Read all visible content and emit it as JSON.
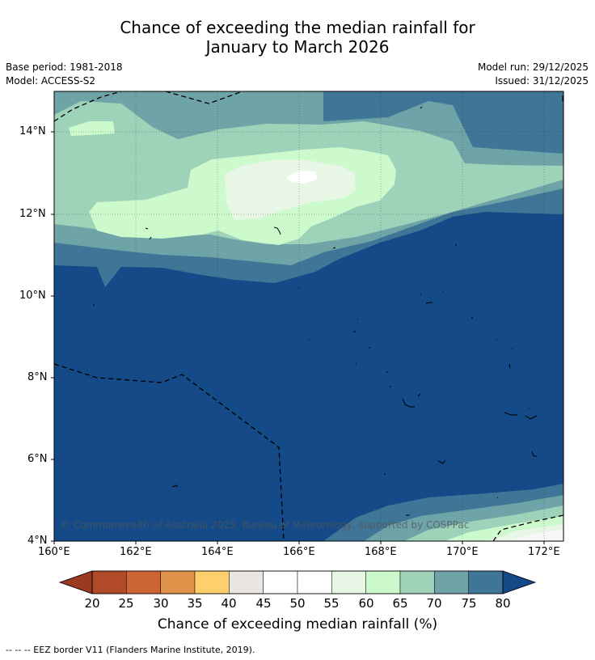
{
  "title": {
    "line1": "Chance of exceeding the median rainfall for",
    "line2": "January to March 2026"
  },
  "meta": {
    "base_period": "Base period: 1981-2018",
    "model": "Model: ACCESS-S2",
    "model_run": "Model run: 29/12/2025",
    "issued": "Issued: 31/12/2025"
  },
  "axes": {
    "x_ticks": [
      "160°E",
      "162°E",
      "164°E",
      "166°E",
      "168°E",
      "170°E",
      "172°E"
    ],
    "y_ticks": [
      "14°N",
      "12°N",
      "10°N",
      "8°N",
      "6°N",
      "4°N"
    ]
  },
  "copyright": "© Commonwealth of Australia 2025, Bureau of Meteorology, supported by COSPPac",
  "colorbar": {
    "ticks": [
      "20",
      "25",
      "30",
      "35",
      "40",
      "45",
      "50",
      "55",
      "60",
      "65",
      "70",
      "75",
      "80"
    ],
    "colors": [
      "#b04a28",
      "#cd6533",
      "#e0924a",
      "#fdd06c",
      "#eae6e1",
      "#ffffff",
      "#ffffff",
      "#e8f6e6",
      "#ccfacc",
      "#9ed2b9",
      "#6ea4a7",
      "#3f7697"
    ],
    "under_color": "#9a3a20",
    "over_color": "#134a87",
    "title": "Chance of exceeding median rainfall (%)"
  },
  "footer": "--  --  -- EEZ border V11 (Flanders Marine Institute, 2019)."
}
